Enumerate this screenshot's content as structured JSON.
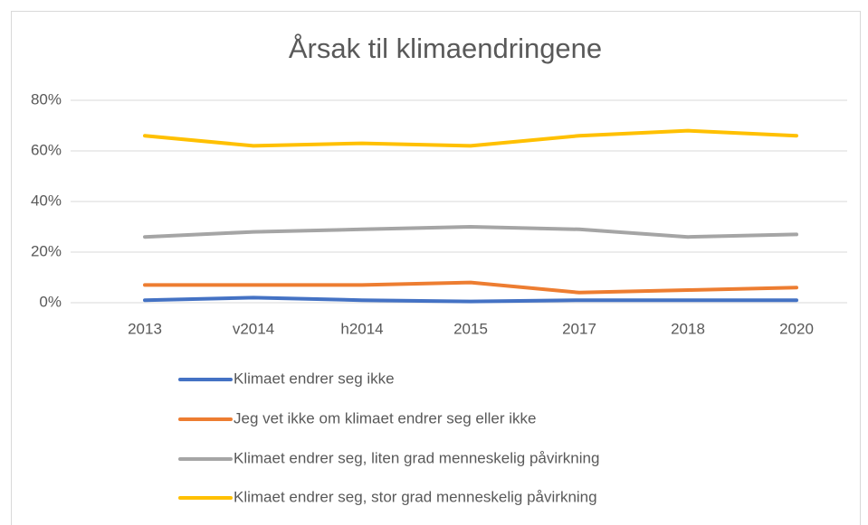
{
  "chart_data": {
    "type": "line",
    "title": "Årsak til klimaendringene",
    "categories": [
      "2013",
      "v2014",
      "h2014",
      "2015",
      "2017",
      "2018",
      "2020"
    ],
    "series": [
      {
        "name": "Klimaet endrer seg ikke",
        "color": "#4472c4",
        "values": [
          1,
          2,
          1,
          0.5,
          1,
          1,
          1
        ]
      },
      {
        "name": "Jeg vet ikke om klimaet endrer seg eller ikke",
        "color": "#ed7d31",
        "values": [
          7,
          7,
          7,
          8,
          4,
          5,
          6
        ]
      },
      {
        "name": "Klimaet endrer seg, liten grad menneskelig påvirkning",
        "color": "#a5a5a5",
        "values": [
          26,
          28,
          29,
          30,
          29,
          26,
          27
        ]
      },
      {
        "name": "Klimaet endrer seg, stor grad menneskelig påvirkning",
        "color": "#ffc000",
        "values": [
          66,
          62,
          63,
          62,
          66,
          68,
          66
        ]
      }
    ],
    "ylim": [
      0,
      80
    ],
    "yticks": [
      {
        "value": 0,
        "label": "0%"
      },
      {
        "value": 20,
        "label": "20%"
      },
      {
        "value": 40,
        "label": "40%"
      },
      {
        "value": 60,
        "label": "60%"
      },
      {
        "value": 80,
        "label": "80%"
      }
    ],
    "grid": true,
    "legend": "bottom"
  }
}
